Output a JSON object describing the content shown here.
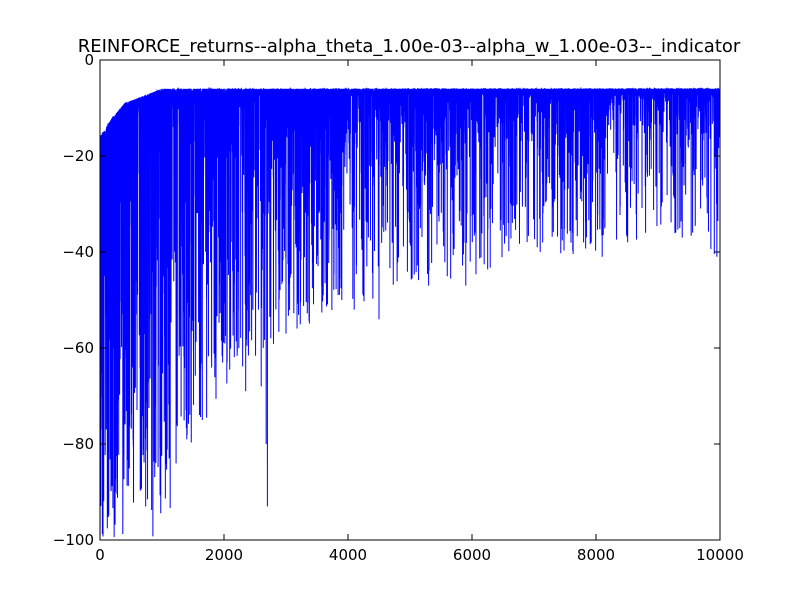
{
  "chart_data": {
    "type": "line",
    "title": "REINFORCE_returns--alpha_theta_1.00e-03--alpha_w_1.00e-03--_indicator",
    "xlabel": "",
    "ylabel": "",
    "xlim": [
      0,
      10000
    ],
    "ylim": [
      -100,
      0
    ],
    "xticks": [
      0,
      2000,
      4000,
      6000,
      8000,
      10000
    ],
    "xtick_labels": [
      "0",
      "2000",
      "4000",
      "6000",
      "8000",
      "10000"
    ],
    "yticks": [
      0,
      -20,
      -40,
      -60,
      -80,
      -100
    ],
    "ytick_labels": [
      "0",
      "−20",
      "−40",
      "−60",
      "−80",
      "−100"
    ],
    "grid": false,
    "series": [
      {
        "color": "#0000ff",
        "n_points": 10000,
        "optimal_return": -6,
        "envelope": {
          "x": [
            0,
            200,
            400,
            600,
            800,
            1000,
            1200,
            1500,
            2000,
            2500,
            3000,
            4000,
            5000,
            6000,
            7000,
            8000,
            9000,
            10000
          ],
          "upper": [
            -16,
            -12,
            -9,
            -8,
            -7,
            -6,
            -6,
            -6,
            -6,
            -6,
            -6,
            -6,
            -6,
            -6,
            -6,
            -6,
            -6,
            -6
          ],
          "lower": [
            -100,
            -100,
            -100,
            -100,
            -100,
            -100,
            -95,
            -80,
            -68,
            -65,
            -57,
            -52,
            -47,
            -45,
            -40,
            -41,
            -36,
            -41
          ]
        },
        "notable_dips": [
          {
            "x": 2700,
            "y": -93
          },
          {
            "x": 2680,
            "y": -80
          },
          {
            "x": 2350,
            "y": -69
          },
          {
            "x": 1400,
            "y": -79
          },
          {
            "x": 1650,
            "y": -75
          },
          {
            "x": 1800,
            "y": -61
          },
          {
            "x": 2050,
            "y": -63
          },
          {
            "x": 2600,
            "y": -68
          },
          {
            "x": 3000,
            "y": -57
          },
          {
            "x": 3600,
            "y": -49
          },
          {
            "x": 3900,
            "y": -50
          },
          {
            "x": 4100,
            "y": -52
          },
          {
            "x": 4500,
            "y": -54
          },
          {
            "x": 5300,
            "y": -47
          },
          {
            "x": 5900,
            "y": -47
          },
          {
            "x": 7100,
            "y": -40
          },
          {
            "x": 7800,
            "y": -38
          },
          {
            "x": 8100,
            "y": -41
          },
          {
            "x": 8800,
            "y": -36
          },
          {
            "x": 9950,
            "y": -41
          }
        ]
      }
    ]
  }
}
